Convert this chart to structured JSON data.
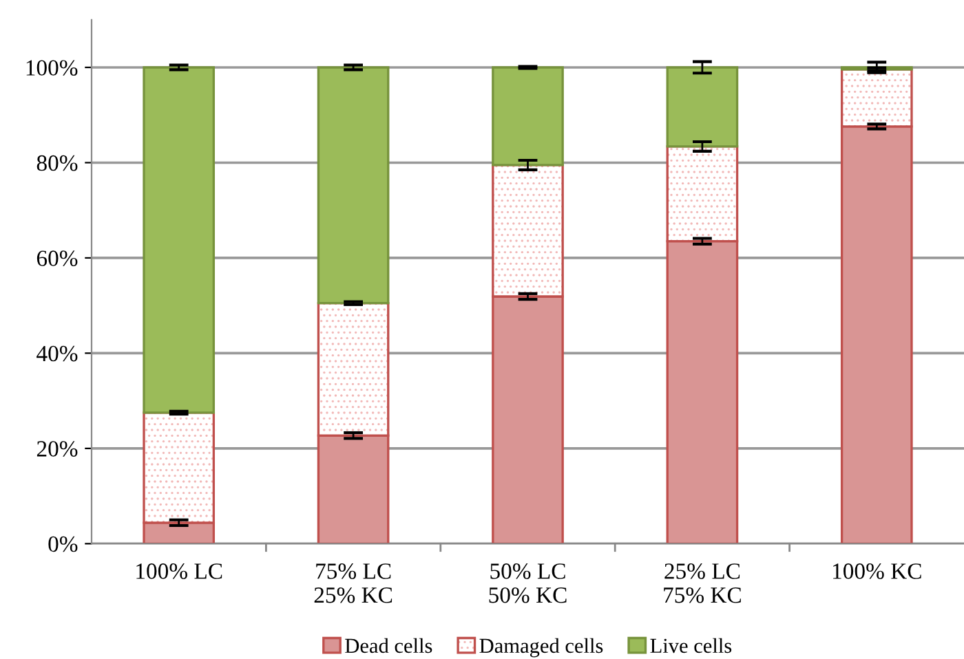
{
  "chart_data": {
    "type": "bar",
    "stacked": true,
    "categories": [
      "100% LC",
      "75% LC\n25% KC",
      "50% LC\n50% KC",
      "25% LC\n75% KC",
      "100% KC"
    ],
    "series": [
      {
        "name": "Dead cells",
        "color": "#d99594",
        "values": [
          4.4,
          22.7,
          51.9,
          63.5,
          87.6
        ],
        "errors": [
          0.6,
          0.6,
          0.6,
          0.6,
          0.5
        ]
      },
      {
        "name": "Damaged cells",
        "color": "#c0504d",
        "values": [
          23.1,
          27.8,
          27.6,
          19.9,
          12.0
        ],
        "errors": [
          0.3,
          0.3,
          1.0,
          1.0,
          0.3
        ]
      },
      {
        "name": "Live cells",
        "color": "#9bbb59",
        "values": [
          72.5,
          49.5,
          20.5,
          16.6,
          0.4
        ],
        "errors": [
          0.5,
          0.5,
          0.2,
          1.2,
          1.1
        ]
      }
    ],
    "ylim": [
      0,
      110
    ],
    "yticks": [
      {
        "value": 0,
        "label": "0%"
      },
      {
        "value": 20,
        "label": "20%"
      },
      {
        "value": 40,
        "label": "40%"
      },
      {
        "value": 60,
        "label": "60%"
      },
      {
        "value": 80,
        "label": "80%"
      },
      {
        "value": 100,
        "label": "100%"
      }
    ],
    "grid": "y",
    "legend": "bottom"
  }
}
